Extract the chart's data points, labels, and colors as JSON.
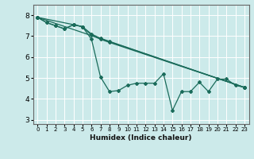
{
  "title": "",
  "xlabel": "Humidex (Indice chaleur)",
  "xlim": [
    -0.5,
    23.5
  ],
  "ylim": [
    2.8,
    8.5
  ],
  "yticks": [
    3,
    4,
    5,
    6,
    7,
    8
  ],
  "xticks": [
    0,
    1,
    2,
    3,
    4,
    5,
    6,
    7,
    8,
    9,
    10,
    11,
    12,
    13,
    14,
    15,
    16,
    17,
    18,
    19,
    20,
    21,
    22,
    23
  ],
  "bg_color": "#cceaea",
  "grid_color": "#ffffff",
  "line_color": "#1a6b5a",
  "series": [
    {
      "x": [
        0,
        1,
        2,
        3,
        4,
        5,
        6,
        7,
        8,
        9,
        10,
        11,
        12,
        13,
        14,
        15,
        16,
        17,
        18,
        19,
        20,
        21,
        22,
        23
      ],
      "y": [
        7.9,
        7.65,
        7.5,
        7.35,
        7.55,
        7.45,
        6.85,
        5.05,
        4.35,
        4.4,
        4.65,
        4.75,
        4.75,
        4.75,
        5.2,
        3.45,
        4.35,
        4.35,
        4.8,
        4.35,
        4.95,
        4.95,
        4.65,
        4.55
      ]
    },
    {
      "x": [
        0,
        1,
        2,
        3,
        4,
        5,
        6,
        7,
        8,
        23
      ],
      "y": [
        7.9,
        7.65,
        7.5,
        7.35,
        7.55,
        7.45,
        7.05,
        6.85,
        6.7,
        4.55
      ]
    },
    {
      "x": [
        0,
        23
      ],
      "y": [
        7.9,
        4.55
      ]
    },
    {
      "x": [
        0,
        4,
        5,
        6,
        7,
        8,
        23
      ],
      "y": [
        7.9,
        7.55,
        7.45,
        7.1,
        6.9,
        6.75,
        4.55
      ]
    }
  ]
}
